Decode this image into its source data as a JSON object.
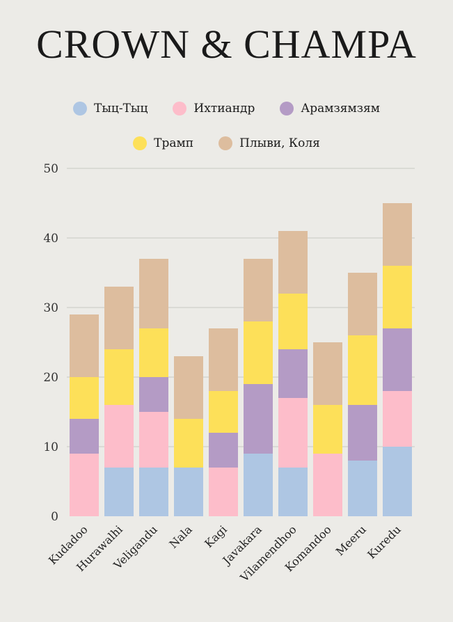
{
  "chart_data": {
    "type": "bar",
    "stacked": true,
    "title": "CROWN & CHAMPA",
    "xlabel": "",
    "ylabel": "",
    "ylim": [
      0,
      50
    ],
    "yticks": [
      0,
      10,
      20,
      30,
      40,
      50
    ],
    "grid": "horizontal",
    "legend_position": "top",
    "categories": [
      "Kudadoo",
      "Hurawalhi",
      "Veligandu",
      "Nala",
      "Kagi",
      "Javakara",
      "Vilamendhoo",
      "Komandoo",
      "Meeru",
      "Kuredu"
    ],
    "series": [
      {
        "name": "Тыц-Тыц",
        "color": "#aec6e3",
        "values": [
          0,
          7,
          7,
          7,
          0,
          9,
          7,
          0,
          8,
          10
        ]
      },
      {
        "name": "Ихтиандр",
        "color": "#fdbdca",
        "values": [
          9,
          9,
          8,
          0,
          7,
          0,
          10,
          9,
          0,
          8
        ]
      },
      {
        "name": "Арамзямзям",
        "color": "#b49bc5",
        "values": [
          5,
          0,
          5,
          0,
          5,
          10,
          7,
          0,
          8,
          9
        ]
      },
      {
        "name": "Трамп",
        "color": "#fde059",
        "values": [
          6,
          8,
          7,
          7,
          6,
          9,
          8,
          7,
          10,
          9
        ]
      },
      {
        "name": "Плыви, Коля",
        "color": "#ddbd9e",
        "values": [
          9,
          9,
          10,
          9,
          9,
          9,
          9,
          9,
          9,
          9
        ]
      }
    ]
  }
}
